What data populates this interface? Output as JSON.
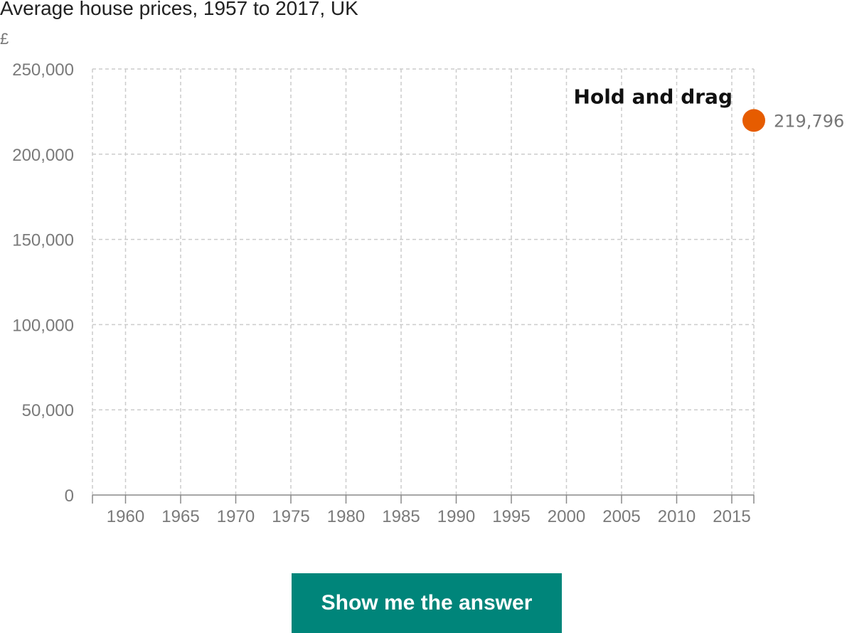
{
  "header": {
    "title": "Average house prices, 1957 to 2017, UK",
    "unit": "£"
  },
  "chart_data": {
    "type": "line",
    "title": "Average house prices, 1957 to 2017, UK",
    "ylabel": "£",
    "xlabel": "",
    "xlim": [
      1957,
      2017
    ],
    "ylim": [
      0,
      250000
    ],
    "x_ticks": [
      1960,
      1965,
      1970,
      1975,
      1980,
      1985,
      1990,
      1995,
      2000,
      2005,
      2010,
      2015
    ],
    "y_ticks": [
      0,
      50000,
      100000,
      150000,
      200000,
      250000
    ],
    "y_tick_labels": [
      "0",
      "50,000",
      "100,000",
      "150,000",
      "200,000",
      "250,000"
    ],
    "grid": true,
    "grid_style": "dashed",
    "series": [],
    "points": [
      {
        "x": 2017,
        "y": 219796,
        "label": "219,796",
        "color": "#e65c00"
      }
    ],
    "annotations": [
      {
        "text": "Hold and drag"
      }
    ]
  },
  "controls": {
    "show_answer_label": "Show me the answer"
  },
  "colors": {
    "accent": "#e65c00",
    "button": "#00857a",
    "grid": "#cccccc",
    "axis": "#888888"
  }
}
